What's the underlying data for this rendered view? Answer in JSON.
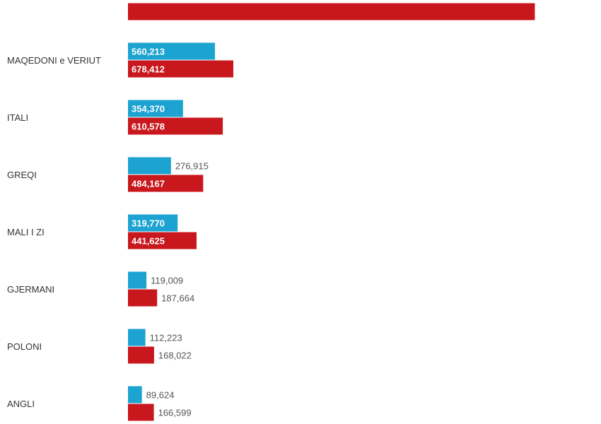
{
  "chart_data": {
    "type": "bar",
    "orientation": "horizontal",
    "grouped": true,
    "categories": [
      "",
      "MAQEDONI e VERIUT",
      "ITALI",
      "GREQI",
      "MALI I ZI",
      "GJERMANI",
      "POLONI",
      "ANGLI",
      ""
    ],
    "series": [
      {
        "color": "#1ca3d1",
        "values": [
          null,
          560213,
          354370,
          276915,
          319770,
          119009,
          112223,
          89624,
          null
        ],
        "labels": [
          "",
          "560,213",
          "354,370",
          "276,915",
          "319,770",
          "119,009",
          "112,223",
          "89,624",
          ""
        ]
      },
      {
        "color": "#c8171d",
        "values": [
          2620000,
          678412,
          610578,
          484167,
          441625,
          187664,
          168022,
          166599,
          null
        ],
        "labels": [
          "",
          "678,412",
          "610,578",
          "484,167",
          "441,625",
          "187,664",
          "168,022",
          "166,599",
          ""
        ]
      }
    ],
    "title": "",
    "xlabel": "",
    "ylabel": "",
    "xlim": [
      0,
      2700000
    ],
    "grid": false,
    "legend": "none"
  }
}
